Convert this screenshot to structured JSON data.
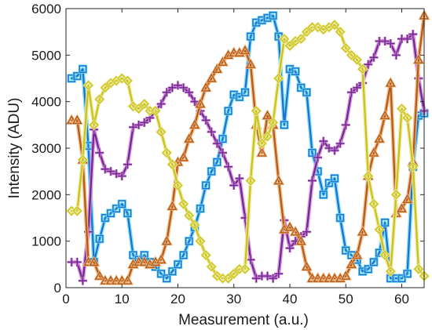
{
  "chart_data": {
    "type": "line",
    "xlabel": "Measurement (a.u.)",
    "ylabel": "Intensity (ADU)",
    "xlim": [
      0,
      64
    ],
    "ylim": [
      0,
      6000
    ],
    "xticks": [
      0,
      10,
      20,
      30,
      40,
      50,
      60
    ],
    "yticks": [
      0,
      1000,
      2000,
      3000,
      4000,
      5000,
      6000
    ],
    "grid": false,
    "legend": "none",
    "x": [
      1,
      2,
      3,
      4,
      5,
      6,
      7,
      8,
      9,
      10,
      11,
      12,
      13,
      14,
      15,
      16,
      17,
      18,
      19,
      20,
      21,
      22,
      23,
      24,
      25,
      26,
      27,
      28,
      29,
      30,
      31,
      32,
      33,
      34,
      35,
      36,
      37,
      38,
      39,
      40,
      41,
      42,
      43,
      44,
      45,
      46,
      47,
      48,
      49,
      50,
      51,
      52,
      53,
      54,
      55,
      56,
      57,
      58,
      59,
      60,
      61,
      62,
      63,
      64
    ],
    "series": [
      {
        "marker": "square",
        "color": "#1f6fd1",
        "halo": "#6fdcf0",
        "values": [
          4500,
          4550,
          4700,
          3050,
          550,
          1050,
          1500,
          1600,
          1700,
          1800,
          1600,
          700,
          600,
          700,
          550,
          450,
          300,
          200,
          350,
          500,
          700,
          1000,
          1300,
          1700,
          2200,
          2500,
          2700,
          3200,
          3800,
          4150,
          4100,
          4200,
          5400,
          5700,
          5750,
          5800,
          5850,
          5400,
          3500,
          4700,
          4650,
          4300,
          4200,
          2900,
          2500,
          2000,
          2250,
          2350,
          1500,
          800,
          700,
          600,
          350,
          400,
          550,
          750,
          1400,
          200,
          200,
          200,
          300,
          2600,
          3700,
          3750
        ]
      },
      {
        "marker": "plus",
        "color": "#6a2c8e",
        "halo": "#d987d9",
        "values": [
          550,
          550,
          150,
          1200,
          3400,
          2900,
          2550,
          2500,
          2450,
          2400,
          2650,
          3450,
          3500,
          3550,
          3650,
          3800,
          3950,
          4200,
          4300,
          4350,
          4300,
          4200,
          4000,
          3800,
          3600,
          3350,
          3100,
          2900,
          2600,
          2200,
          2350,
          1500,
          600,
          200,
          250,
          250,
          200,
          300,
          1450,
          850,
          1000,
          1100,
          1200,
          2300,
          2800,
          3150,
          3000,
          2950,
          3100,
          3500,
          4200,
          4300,
          4400,
          4800,
          4950,
          5300,
          5300,
          5250,
          5000,
          5350,
          5350,
          5450,
          4500,
          3800
        ]
      },
      {
        "marker": "triangle",
        "color": "#b35a1a",
        "halo": "#f0b880",
        "values": [
          3600,
          3600,
          2750,
          550,
          550,
          250,
          150,
          150,
          150,
          150,
          150,
          500,
          550,
          550,
          500,
          550,
          600,
          1000,
          1750,
          2700,
          2800,
          3200,
          3500,
          3950,
          4300,
          4500,
          4700,
          4850,
          5000,
          5050,
          5050,
          5100,
          4800,
          3500,
          2900,
          3700,
          3500,
          2300,
          1250,
          1300,
          1200,
          1000,
          450,
          200,
          200,
          200,
          200,
          200,
          200,
          250,
          500,
          700,
          1200,
          2400,
          2900,
          3200,
          3700,
          4400,
          1600,
          1700,
          1900,
          2700,
          4900,
          5850
        ]
      },
      {
        "marker": "diamond",
        "color": "#c8c21a",
        "halo": "#f0eaa0",
        "values": [
          1650,
          1650,
          2750,
          4350,
          3500,
          4050,
          4300,
          4400,
          4450,
          4500,
          4450,
          3900,
          3850,
          3950,
          3800,
          3800,
          3350,
          2900,
          2650,
          2200,
          1800,
          1550,
          1350,
          1000,
          700,
          450,
          250,
          200,
          200,
          300,
          400,
          400,
          2300,
          3800,
          3100,
          3250,
          3550,
          4500,
          5350,
          5200,
          5300,
          5350,
          5500,
          5600,
          5600,
          5550,
          5600,
          5650,
          5500,
          5150,
          5000,
          4900,
          4700,
          2400,
          1800,
          1250,
          700,
          350,
          2000,
          3850,
          3650,
          2600,
          400,
          250
        ]
      }
    ]
  }
}
